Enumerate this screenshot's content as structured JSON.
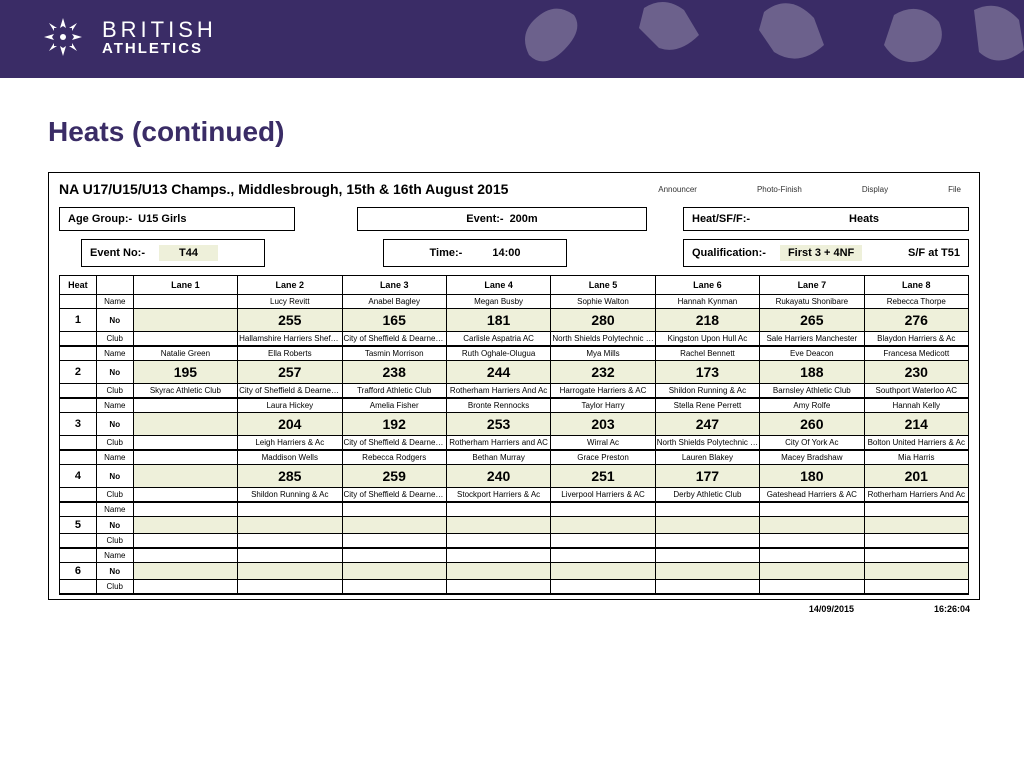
{
  "branding": {
    "line1": "BRITISH",
    "line2": "ATHLETICS"
  },
  "page_title": "Heats (continued)",
  "competition_title": "NA U17/U15/U13 Champs., Middlesbrough, 15th & 16th August 2015",
  "header_labels": [
    "Announcer",
    "Photo-Finish",
    "Display",
    "File"
  ],
  "info": {
    "age_group_label": "Age Group:-",
    "age_group_value": "U15 Girls",
    "event_label": "Event:-",
    "event_value": "200m",
    "heat_label": "Heat/SF/F:-",
    "heat_value": "Heats",
    "event_no_label": "Event No:-",
    "event_no_value": "T44",
    "time_label": "Time:-",
    "time_value": "14:00",
    "qual_label": "Qualification:-",
    "qual_value": "First 3 + 4NF",
    "sf_label": "S/F at T51"
  },
  "columns": [
    "Heat",
    "",
    "Lane 1",
    "Lane 2",
    "Lane 3",
    "Lane 4",
    "Lane 5",
    "Lane 6",
    "Lane 7",
    "Lane 8"
  ],
  "row_labels": {
    "name": "Name",
    "no": "No",
    "club": "Club"
  },
  "heats": [
    {
      "heat": "1",
      "name": [
        "",
        "Lucy  Revitt",
        "Anabel Bagley",
        "Megan Busby",
        "Sophie Walton",
        "Hannah Kynman",
        "Rukayatu Shonibare",
        "Rebecca Thorpe"
      ],
      "no": [
        "",
        "255",
        "165",
        "181",
        "280",
        "218",
        "265",
        "276"
      ],
      "club": [
        "",
        "Hallamshire Harriers Sheffield",
        "City of Sheffield & Dearne AC",
        "Carlisle Aspatria AC",
        "North Shields Polytechnic Club",
        "Kingston Upon Hull Ac",
        "Sale Harriers Manchester",
        "Blaydon Harriers & Ac"
      ]
    },
    {
      "heat": "2",
      "name": [
        "Natalie Green",
        "Ella Roberts",
        "Tasmin Morrison",
        "Ruth Oghale-Olugua",
        "Mya Mills",
        "Rachel Bennett",
        "Eve Deacon",
        "Francesa Medicott"
      ],
      "no": [
        "195",
        "257",
        "238",
        "244",
        "232",
        "173",
        "188",
        "230"
      ],
      "club": [
        "Skyrac Athletic Club",
        "City of Sheffield & Dearne AC",
        "Trafford Athletic Club",
        "Rotherham Harriers And Ac",
        "Harrogate Harriers & AC",
        "Shildon Running & Ac",
        "Barnsley Athletic Club",
        "Southport Waterloo AC"
      ]
    },
    {
      "heat": "3",
      "name": [
        "",
        "Laura Hickey",
        "Amelia Fisher",
        "Bronte Rennocks",
        "Taylor Harry",
        "Stella Rene Perrett",
        "Amy Rolfe",
        "Hannah Kelly"
      ],
      "no": [
        "",
        "204",
        "192",
        "253",
        "203",
        "247",
        "260",
        "214"
      ],
      "club": [
        "",
        "Leigh Harriers & Ac",
        "City of Sheffield & Dearne AC",
        "Rotherham Harriers and AC",
        "Wirral Ac",
        "North Shields Polytechnic Club",
        "City Of York Ac",
        "Bolton United Harriers & Ac"
      ]
    },
    {
      "heat": "4",
      "name": [
        "",
        "Maddison Wells",
        "Rebecca Rodgers",
        "Bethan Murray",
        "Grace Preston",
        "Lauren Blakey",
        "Macey Bradshaw",
        "Mia Harris"
      ],
      "no": [
        "",
        "285",
        "259",
        "240",
        "251",
        "177",
        "180",
        "201"
      ],
      "club": [
        "",
        "Shildon Running & Ac",
        "City of Sheffield & Dearne AC",
        "Stockport Harriers & Ac",
        "Liverpool Harriers & AC",
        "Derby Athletic Club",
        "Gateshead Harriers & AC",
        "Rotherham Harriers And Ac"
      ]
    },
    {
      "heat": "5",
      "name": [
        "",
        "",
        "",
        "",
        "",
        "",
        "",
        ""
      ],
      "no": [
        "",
        "",
        "",
        "",
        "",
        "",
        "",
        ""
      ],
      "club": [
        "",
        "",
        "",
        "",
        "",
        "",
        "",
        ""
      ]
    },
    {
      "heat": "6",
      "name": [
        "",
        "",
        "",
        "",
        "",
        "",
        "",
        ""
      ],
      "no": [
        "",
        "",
        "",
        "",
        "",
        "",
        "",
        ""
      ],
      "club": [
        "",
        "",
        "",
        "",
        "",
        "",
        "",
        ""
      ]
    }
  ],
  "footer": {
    "date": "14/09/2015",
    "time": "16:26:04"
  },
  "colors": {
    "brand": "#3a2c66",
    "highlight": "#eef0da"
  }
}
